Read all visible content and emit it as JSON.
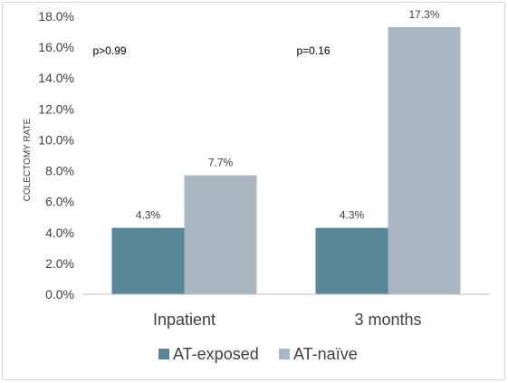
{
  "chart_data": {
    "type": "bar",
    "title": "",
    "xlabel": "",
    "ylabel": "COLECTOMY RATE",
    "categories": [
      "Inpatient",
      "3 months"
    ],
    "series": [
      {
        "name": "AT-exposed",
        "values": [
          4.3,
          4.3
        ],
        "labels": [
          "4.3%",
          "4.3%"
        ],
        "color": "#588798"
      },
      {
        "name": "AT-naïve",
        "values": [
          7.7,
          17.3
        ],
        "labels": [
          "7.7%",
          "17.3%"
        ],
        "color": "#a9b7c3"
      }
    ],
    "ylim": [
      0,
      18
    ],
    "yticks": [
      0,
      2,
      4,
      6,
      8,
      10,
      12,
      14,
      16,
      18
    ],
    "ytick_labels": [
      "0.0%",
      "2.0%",
      "4.0%",
      "6.0%",
      "8.0%",
      "10.0%",
      "12.0%",
      "14.0%",
      "16.0%",
      "18.0%"
    ],
    "annotations": [
      "p>0.99",
      "p=0.16"
    ],
    "grid": false,
    "legend": "bottom",
    "axis_color": "#bfbfbf"
  }
}
